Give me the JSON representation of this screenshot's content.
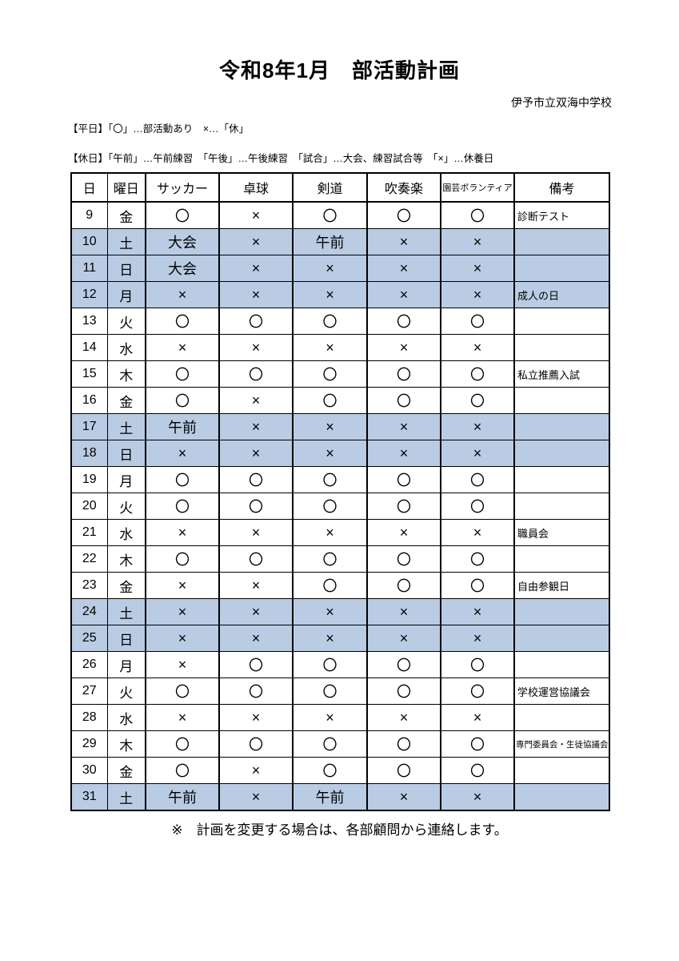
{
  "page": {
    "title": "令和8年1月　部活動計画",
    "school": "伊予市立双海中学校",
    "legend_weekday": "【平日】「〇」…部活動あり　×…「休」",
    "legend_holiday": "【休日】「午前」…午前練習　「午後」…午後練習　「試合」…大会、練習試合等　「×」…休養日",
    "footer_note": "※　計画を変更する場合は、各部顧問から連絡します。"
  },
  "table": {
    "headers": [
      "日",
      "曜日",
      "サッカー",
      "卓球",
      "剣道",
      "吹奏楽",
      "園芸ボランティア",
      "備考"
    ],
    "highlight_color": "#b9cce4",
    "rows": [
      {
        "day": "9",
        "weekday": "金",
        "values": [
          "〇",
          "×",
          "〇",
          "〇",
          "〇"
        ],
        "remark": "診断テスト",
        "highlight": false
      },
      {
        "day": "10",
        "weekday": "土",
        "values": [
          "大会",
          "×",
          "午前",
          "×",
          "×"
        ],
        "remark": "",
        "highlight": true
      },
      {
        "day": "11",
        "weekday": "日",
        "values": [
          "大会",
          "×",
          "×",
          "×",
          "×"
        ],
        "remark": "",
        "highlight": true
      },
      {
        "day": "12",
        "weekday": "月",
        "values": [
          "×",
          "×",
          "×",
          "×",
          "×"
        ],
        "remark": "成人の日",
        "highlight": true
      },
      {
        "day": "13",
        "weekday": "火",
        "values": [
          "〇",
          "〇",
          "〇",
          "〇",
          "〇"
        ],
        "remark": "",
        "highlight": false
      },
      {
        "day": "14",
        "weekday": "水",
        "values": [
          "×",
          "×",
          "×",
          "×",
          "×"
        ],
        "remark": "",
        "highlight": false
      },
      {
        "day": "15",
        "weekday": "木",
        "values": [
          "〇",
          "〇",
          "〇",
          "〇",
          "〇"
        ],
        "remark": "私立推薦入試",
        "highlight": false
      },
      {
        "day": "16",
        "weekday": "金",
        "values": [
          "〇",
          "×",
          "〇",
          "〇",
          "〇"
        ],
        "remark": "",
        "highlight": false
      },
      {
        "day": "17",
        "weekday": "土",
        "values": [
          "午前",
          "×",
          "×",
          "×",
          "×"
        ],
        "remark": "",
        "highlight": true
      },
      {
        "day": "18",
        "weekday": "日",
        "values": [
          "×",
          "×",
          "×",
          "×",
          "×"
        ],
        "remark": "",
        "highlight": true
      },
      {
        "day": "19",
        "weekday": "月",
        "values": [
          "〇",
          "〇",
          "〇",
          "〇",
          "〇"
        ],
        "remark": "",
        "highlight": false
      },
      {
        "day": "20",
        "weekday": "火",
        "values": [
          "〇",
          "〇",
          "〇",
          "〇",
          "〇"
        ],
        "remark": "",
        "highlight": false
      },
      {
        "day": "21",
        "weekday": "水",
        "values": [
          "×",
          "×",
          "×",
          "×",
          "×"
        ],
        "remark": "職員会",
        "highlight": false
      },
      {
        "day": "22",
        "weekday": "木",
        "values": [
          "〇",
          "〇",
          "〇",
          "〇",
          "〇"
        ],
        "remark": "",
        "highlight": false
      },
      {
        "day": "23",
        "weekday": "金",
        "values": [
          "×",
          "×",
          "〇",
          "〇",
          "〇"
        ],
        "remark": "自由参観日",
        "highlight": false
      },
      {
        "day": "24",
        "weekday": "土",
        "values": [
          "×",
          "×",
          "×",
          "×",
          "×"
        ],
        "remark": "",
        "highlight": true
      },
      {
        "day": "25",
        "weekday": "日",
        "values": [
          "×",
          "×",
          "×",
          "×",
          "×"
        ],
        "remark": "",
        "highlight": true
      },
      {
        "day": "26",
        "weekday": "月",
        "values": [
          "×",
          "〇",
          "〇",
          "〇",
          "〇"
        ],
        "remark": "",
        "highlight": false
      },
      {
        "day": "27",
        "weekday": "火",
        "values": [
          "〇",
          "〇",
          "〇",
          "〇",
          "〇"
        ],
        "remark": "学校運営協議会",
        "highlight": false
      },
      {
        "day": "28",
        "weekday": "水",
        "values": [
          "×",
          "×",
          "×",
          "×",
          "×"
        ],
        "remark": "",
        "highlight": false
      },
      {
        "day": "29",
        "weekday": "木",
        "values": [
          "〇",
          "〇",
          "〇",
          "〇",
          "〇"
        ],
        "remark": "専門委員会・生徒協議会",
        "highlight": false
      },
      {
        "day": "30",
        "weekday": "金",
        "values": [
          "〇",
          "×",
          "〇",
          "〇",
          "〇"
        ],
        "remark": "",
        "highlight": false
      },
      {
        "day": "31",
        "weekday": "土",
        "values": [
          "午前",
          "×",
          "午前",
          "×",
          "×"
        ],
        "remark": "",
        "highlight": true
      }
    ]
  }
}
